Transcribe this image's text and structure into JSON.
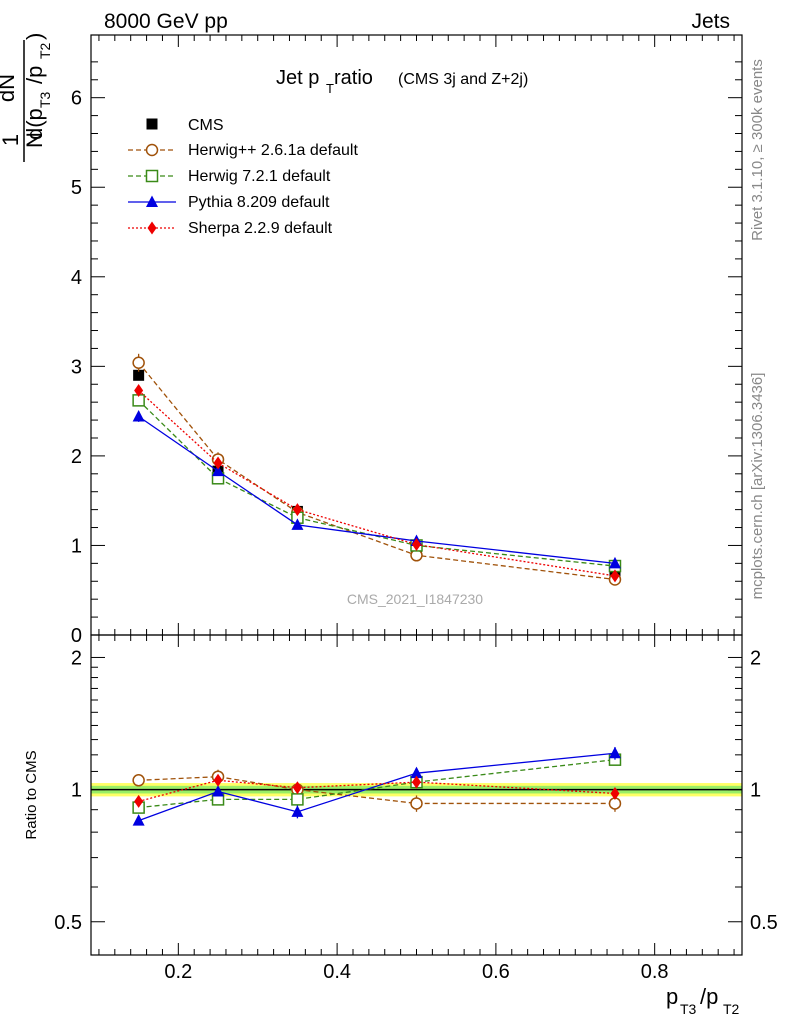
{
  "header": {
    "left": "8000 GeV pp",
    "right": "Jets"
  },
  "side": {
    "top": "Rivet 3.1.10, ≥ 300k events",
    "bottom": "mcplots.cern.ch [arXiv:1306.3436]"
  },
  "colors": {
    "cms": "#000000",
    "herwigpp": "#a0520a",
    "herwig7": "#3a8a18",
    "pythia": "#0000e0",
    "sherpa": "#ee0000",
    "band_outer": "#ffff66",
    "band_inner": "#99ee66"
  },
  "chart_data": {
    "type": "line",
    "title": "Jet p_T ratio",
    "title_parts": {
      "main": "Jet p",
      "sub": "T",
      "rest": " ratio",
      "note": "(CMS 3j and Z+2j)"
    },
    "watermark": "CMS_2021_I1847230",
    "x": [
      0.15,
      0.25,
      0.35,
      0.5,
      0.75
    ],
    "xlim": [
      0.09,
      0.91
    ],
    "xticks": [
      {
        "value": 0.2,
        "label": "0.2"
      },
      {
        "value": 0.4,
        "label": "0.4"
      },
      {
        "value": 0.6,
        "label": "0.6"
      },
      {
        "value": 0.8,
        "label": "0.8"
      }
    ],
    "xlabel": {
      "p1": "p",
      "s1": "T3",
      "slash": "/p",
      "s2": "T2"
    },
    "ylabel": {
      "one": "1",
      "N": "N",
      "dN": "dN",
      "d": "d(p",
      "s1": "T3",
      "mid": "/p",
      "s2": "T2",
      "close": ")"
    },
    "ylim": [
      0,
      6.7
    ],
    "yticks": [
      {
        "value": 0,
        "label": "0"
      },
      {
        "value": 1,
        "label": "1"
      },
      {
        "value": 2,
        "label": "2"
      },
      {
        "value": 3,
        "label": "3"
      },
      {
        "value": 4,
        "label": "4"
      },
      {
        "value": 5,
        "label": "5"
      },
      {
        "value": 6,
        "label": "6"
      }
    ],
    "series": [
      {
        "name": "CMS",
        "key": "cms",
        "marker": "square-filled",
        "line": "none",
        "values": [
          2.9,
          1.83,
          1.38,
          0.97,
          0.67
        ],
        "errors": [
          0.05,
          0.04,
          0.04,
          0.03,
          0.03
        ]
      },
      {
        "name": "Herwig++ 2.6.1a default",
        "key": "herwigpp",
        "marker": "circle-open",
        "line": "dashed",
        "values": [
          3.04,
          1.96,
          1.37,
          0.89,
          0.62
        ],
        "errors": [
          0.1,
          0.08,
          0.06,
          0.04,
          0.03
        ]
      },
      {
        "name": "Herwig 7.2.1 default",
        "key": "herwig7",
        "marker": "square-open",
        "line": "dashed",
        "values": [
          2.62,
          1.75,
          1.31,
          1.0,
          0.77
        ],
        "errors": [
          0.06,
          0.04,
          0.04,
          0.03,
          0.03
        ]
      },
      {
        "name": "Pythia 8.209 default",
        "key": "pythia",
        "marker": "triangle-filled",
        "line": "solid",
        "values": [
          2.44,
          1.83,
          1.23,
          1.05,
          0.8
        ],
        "errors": [
          0.06,
          0.04,
          0.04,
          0.03,
          0.03
        ]
      },
      {
        "name": "Sherpa 2.2.9 default",
        "key": "sherpa",
        "marker": "diamond-filled",
        "line": "dotted",
        "values": [
          2.73,
          1.92,
          1.4,
          1.01,
          0.66
        ],
        "errors": [
          0.05,
          0.04,
          0.04,
          0.03,
          0.02
        ]
      }
    ],
    "ratio": {
      "ylabel": "Ratio to CMS",
      "ylim": [
        0.42,
        2.25
      ],
      "log": true,
      "yticks": [
        {
          "value": 0.5,
          "label": "0.5"
        },
        {
          "value": 1,
          "label": "1"
        },
        {
          "value": 2,
          "label": "2"
        }
      ],
      "band": {
        "outer": 0.035,
        "inner": 0.02
      },
      "series": [
        {
          "key": "herwigpp",
          "values": [
            1.05,
            1.07,
            1.0,
            0.93,
            0.93
          ],
          "errors": [
            0.03,
            0.04,
            0.04,
            0.04,
            0.04
          ]
        },
        {
          "key": "herwig7",
          "values": [
            0.91,
            0.95,
            0.95,
            1.04,
            1.17
          ],
          "errors": [
            0.02,
            0.02,
            0.02,
            0.02,
            0.03
          ]
        },
        {
          "key": "pythia",
          "values": [
            0.85,
            0.99,
            0.89,
            1.09,
            1.21
          ],
          "errors": [
            0.02,
            0.02,
            0.03,
            0.03,
            0.04
          ]
        },
        {
          "key": "sherpa",
          "values": [
            0.94,
            1.05,
            1.01,
            1.04,
            0.98
          ],
          "errors": [
            0.02,
            0.02,
            0.02,
            0.02,
            0.02
          ]
        }
      ]
    }
  }
}
